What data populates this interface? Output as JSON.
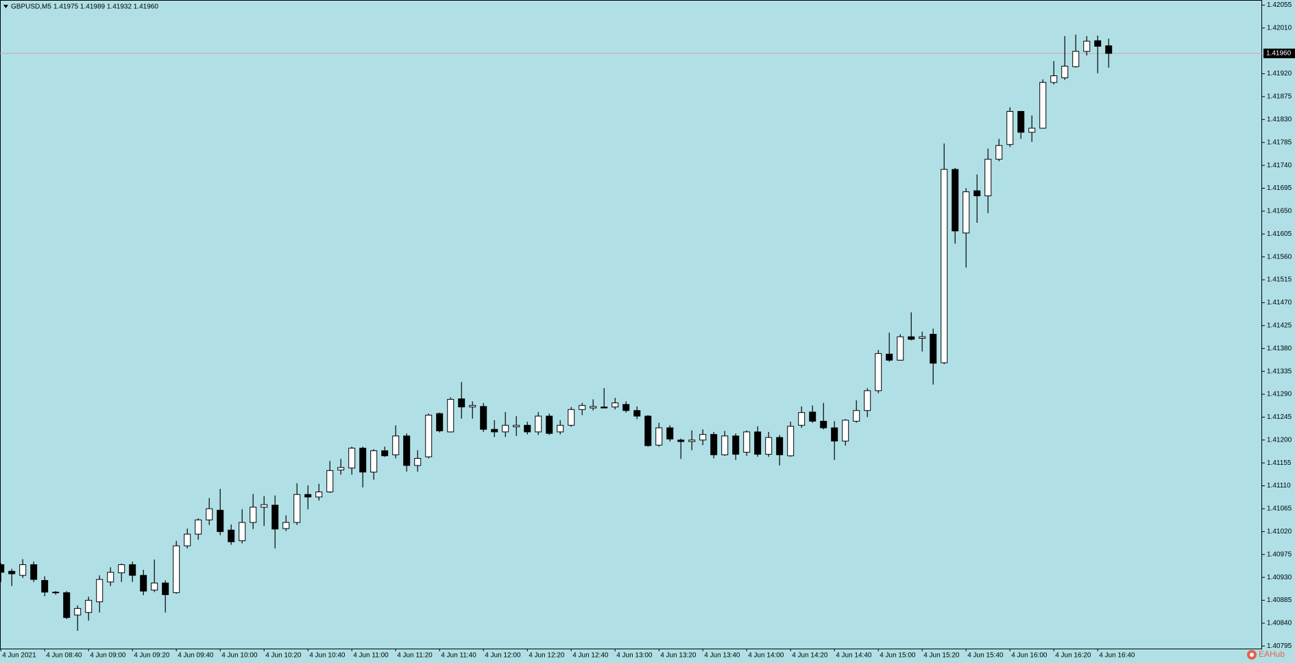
{
  "chart_data": {
    "type": "candlestick",
    "title": "GBPUSD,M5",
    "info": "1.41975 1.41989 1.41932 1.41960",
    "watermark": "EAHub",
    "bull_color": "#ffffff",
    "bear_color": "#000000",
    "background": "#b0e0e6",
    "current_price": {
      "value": 1.4196,
      "label": "1.41960"
    },
    "categories": [
      "4 Jun 2021",
      null,
      null,
      null,
      "4 Jun 08:40",
      null,
      null,
      null,
      "4 Jun 09:00",
      null,
      null,
      null,
      "4 Jun 09:20",
      null,
      null,
      null,
      "4 Jun 09:40",
      null,
      null,
      null,
      "4 Jun 10:00",
      null,
      null,
      null,
      "4 Jun 10:20",
      null,
      null,
      null,
      "4 Jun 10:40",
      null,
      null,
      null,
      "4 Jun 11:00",
      null,
      null,
      null,
      "4 Jun 11:20",
      null,
      null,
      null,
      "4 Jun 11:40",
      null,
      null,
      null,
      "4 Jun 12:00",
      null,
      null,
      null,
      "4 Jun 12:20",
      null,
      null,
      null,
      "4 Jun 12:40",
      null,
      null,
      null,
      "4 Jun 13:00",
      null,
      null,
      null,
      "4 Jun 13:20",
      null,
      null,
      null,
      "4 Jun 13:40",
      null,
      null,
      null,
      "4 Jun 14:00",
      null,
      null,
      null,
      "4 Jun 14:20",
      null,
      null,
      null,
      "4 Jun 14:40",
      null,
      null,
      null,
      "4 Jun 15:00",
      null,
      null,
      null,
      "4 Jun 15:20",
      null,
      null,
      null,
      "4 Jun 15:40",
      null,
      null,
      null,
      "4 Jun 16:00",
      null,
      null,
      null,
      "4 Jun 16:20",
      null,
      null,
      null,
      "4 Jun 16:40",
      null
    ],
    "open": [
      1.40955,
      1.40942,
      1.40934,
      1.40955,
      1.40924,
      1.40901,
      1.409,
      1.40856,
      1.40861,
      1.40882,
      1.40921,
      1.40939,
      1.40955,
      1.40934,
      1.40905,
      1.40919,
      1.409,
      1.40992,
      1.41015,
      1.41043,
      1.41062,
      1.41023,
      1.41002,
      1.41038,
      1.41068,
      1.41072,
      1.41026,
      1.41038,
      1.41093,
      1.41088,
      1.41098,
      1.41141,
      1.41145,
      1.41184,
      1.41137,
      1.41179,
      1.41171,
      1.41208,
      1.4115,
      1.41167,
      1.41252,
      1.41216,
      1.41281,
      1.41265,
      1.41266,
      1.41221,
      1.41216,
      1.41226,
      1.41229,
      1.41216,
      1.41247,
      1.41216,
      1.41229,
      1.4126,
      1.41263,
      1.41265,
      1.41265,
      1.4127,
      1.41258,
      1.41247,
      1.4119,
      1.41224,
      1.412,
      1.41197,
      1.412,
      1.41211,
      1.41171,
      1.41208,
      1.41176,
      1.41216,
      1.41172,
      1.41205,
      1.41169,
      1.41229,
      1.41255,
      1.41237,
      1.41224,
      1.41198,
      1.41237,
      1.41258,
      1.41297,
      1.41369,
      1.41357,
      1.41403,
      1.414,
      1.41408,
      1.41352,
      1.41732,
      1.41607,
      1.4169,
      1.4168,
      1.41752,
      1.41781,
      1.41846,
      1.41805,
      1.41813,
      1.41903,
      1.41912,
      1.41934,
      1.41964,
      1.41985,
      1.41975
    ],
    "high": [
      1.40958,
      1.40947,
      1.40966,
      1.40961,
      1.40932,
      1.40903,
      1.40903,
      1.40875,
      1.40892,
      1.40934,
      1.4095,
      1.40957,
      1.40961,
      1.40945,
      1.40965,
      1.40924,
      1.41002,
      1.41026,
      1.41046,
      1.41086,
      1.41104,
      1.41034,
      1.41064,
      1.41094,
      1.4109,
      1.41091,
      1.41052,
      1.41115,
      1.41111,
      1.41114,
      1.41159,
      1.41163,
      1.41187,
      1.41187,
      1.41182,
      1.41187,
      1.41229,
      1.41213,
      1.4118,
      1.41252,
      1.41254,
      1.41284,
      1.41314,
      1.41276,
      1.41273,
      1.41239,
      1.41255,
      1.41247,
      1.41236,
      1.41255,
      1.41252,
      1.41239,
      1.41265,
      1.41273,
      1.4128,
      1.41302,
      1.41283,
      1.41276,
      1.41266,
      1.41249,
      1.41234,
      1.41229,
      1.41203,
      1.41219,
      1.41221,
      1.41216,
      1.41218,
      1.41213,
      1.41219,
      1.41227,
      1.41216,
      1.4121,
      1.41236,
      1.41266,
      1.41268,
      1.41273,
      1.41237,
      1.41241,
      1.41278,
      1.41302,
      1.41377,
      1.41411,
      1.41408,
      1.41451,
      1.41413,
      1.41419,
      1.41783,
      1.41735,
      1.41695,
      1.41722,
      1.41773,
      1.41792,
      1.41854,
      1.41847,
      1.41838,
      1.41909,
      1.41945,
      1.41994,
      1.41997,
      1.41994,
      1.41995,
      1.41989
    ],
    "low": [
      1.40921,
      1.40913,
      1.40929,
      1.40921,
      1.40893,
      1.40896,
      1.40848,
      1.40825,
      1.40845,
      1.40861,
      1.40913,
      1.40921,
      1.40921,
      1.40895,
      1.40901,
      1.40861,
      1.40898,
      1.40987,
      1.41004,
      1.41033,
      1.41013,
      1.40994,
      1.40997,
      1.41025,
      1.41031,
      1.40987,
      1.41021,
      1.41033,
      1.41064,
      1.41081,
      1.41096,
      1.41132,
      1.41132,
      1.41107,
      1.41122,
      1.41167,
      1.41164,
      1.41138,
      1.41138,
      1.41164,
      1.41215,
      1.41215,
      1.41242,
      1.41242,
      1.41216,
      1.41206,
      1.41206,
      1.41208,
      1.41211,
      1.4121,
      1.4121,
      1.41211,
      1.41226,
      1.41249,
      1.41258,
      1.41263,
      1.4126,
      1.41254,
      1.41241,
      1.41187,
      1.41187,
      1.41197,
      1.41163,
      1.4118,
      1.4119,
      1.41164,
      1.41169,
      1.41161,
      1.41169,
      1.41167,
      1.41167,
      1.4115,
      1.41167,
      1.41224,
      1.41234,
      1.41221,
      1.41161,
      1.41189,
      1.41234,
      1.41245,
      1.41292,
      1.41354,
      1.41356,
      1.41396,
      1.41374,
      1.41309,
      1.41349,
      1.41586,
      1.41539,
      1.41627,
      1.41646,
      1.41748,
      1.41776,
      1.41792,
      1.41786,
      1.41812,
      1.41899,
      1.41908,
      1.41932,
      1.41956,
      1.41921,
      1.41932
    ],
    "close": [
      1.4094,
      1.40937,
      1.40955,
      1.40926,
      1.40901,
      1.409,
      1.40851,
      1.40869,
      1.40885,
      1.40926,
      1.4094,
      1.40955,
      1.40934,
      1.40903,
      1.40919,
      1.40896,
      1.40992,
      1.41015,
      1.41043,
      1.41065,
      1.4102,
      1.41,
      1.41038,
      1.41068,
      1.41073,
      1.41025,
      1.41038,
      1.41093,
      1.41088,
      1.41098,
      1.4114,
      1.41146,
      1.41184,
      1.41137,
      1.41179,
      1.41169,
      1.41208,
      1.4115,
      1.41164,
      1.41249,
      1.41218,
      1.4128,
      1.41265,
      1.41268,
      1.41221,
      1.41216,
      1.41229,
      1.41229,
      1.41216,
      1.41247,
      1.41213,
      1.41229,
      1.4126,
      1.41268,
      1.41266,
      1.41263,
      1.41273,
      1.41258,
      1.41247,
      1.41189,
      1.41224,
      1.41202,
      1.41197,
      1.412,
      1.41211,
      1.41171,
      1.41208,
      1.41172,
      1.41216,
      1.41172,
      1.41205,
      1.41171,
      1.41227,
      1.41254,
      1.41237,
      1.41224,
      1.41198,
      1.41239,
      1.41258,
      1.41297,
      1.4137,
      1.41357,
      1.41403,
      1.41398,
      1.41403,
      1.41351,
      1.41732,
      1.41611,
      1.41688,
      1.4168,
      1.41752,
      1.41779,
      1.41846,
      1.41805,
      1.41813,
      1.41903,
      1.41916,
      1.41935,
      1.41964,
      1.41984,
      1.41974,
      1.4196
    ],
    "ylim": [
      1.4079,
      1.42065
    ],
    "yticks": [
      1.42055,
      {
        "value": 1.4201,
        "label": "1.42010"
      },
      {
        "value": 1.4192,
        "label": "1.41920"
      },
      1.41875,
      {
        "value": 1.4183,
        "label": "1.41830"
      },
      1.41785,
      {
        "value": 1.4174,
        "label": "1.41740"
      },
      1.41695,
      {
        "value": 1.4165,
        "label": "1.41650"
      },
      1.41605,
      {
        "value": 1.4156,
        "label": "1.41560"
      },
      1.41515,
      {
        "value": 1.4147,
        "label": "1.41470"
      },
      1.41425,
      {
        "value": 1.4138,
        "label": "1.41380"
      },
      1.41335,
      {
        "value": 1.4129,
        "label": "1.41290"
      },
      1.41245,
      {
        "value": 1.412,
        "label": "1.41200"
      },
      1.41155,
      {
        "value": 1.4111,
        "label": "1.41110"
      },
      1.41065,
      {
        "value": 1.4102,
        "label": "1.41020"
      },
      1.40975,
      {
        "value": 1.4093,
        "label": "1.40930"
      },
      1.40885,
      {
        "value": 1.4084,
        "label": "1.40840"
      },
      1.40795
    ]
  }
}
